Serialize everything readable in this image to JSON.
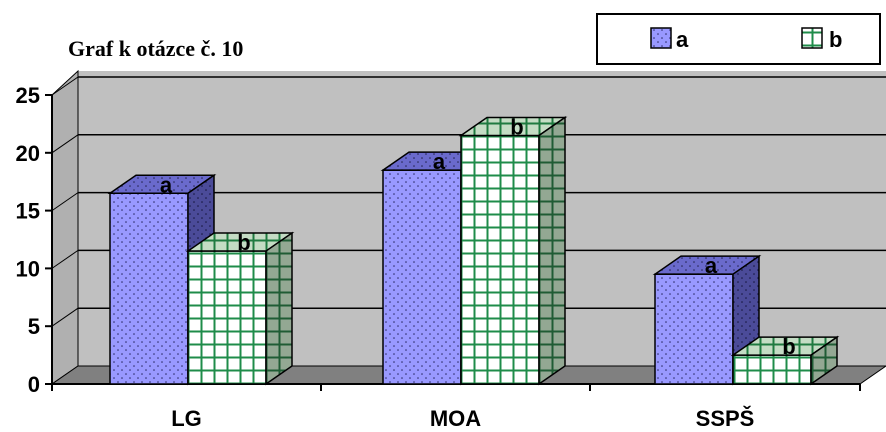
{
  "chart_data": {
    "type": "bar",
    "title": "Graf k otázce č. 10",
    "categories": [
      "LG",
      "MOA",
      "SSPŠ"
    ],
    "series": [
      {
        "name": "a",
        "values": [
          16.5,
          18.5,
          9.5
        ],
        "color": "#9999ff"
      },
      {
        "name": "b",
        "values": [
          11.5,
          21.5,
          2.5
        ],
        "color": "#ccffcc"
      }
    ],
    "yticks": [
      "0",
      "5",
      "10",
      "15",
      "20",
      "25"
    ],
    "ylim": [
      0,
      25
    ],
    "grid": true,
    "legend": "top-right",
    "style": "3d-clustered-column"
  }
}
